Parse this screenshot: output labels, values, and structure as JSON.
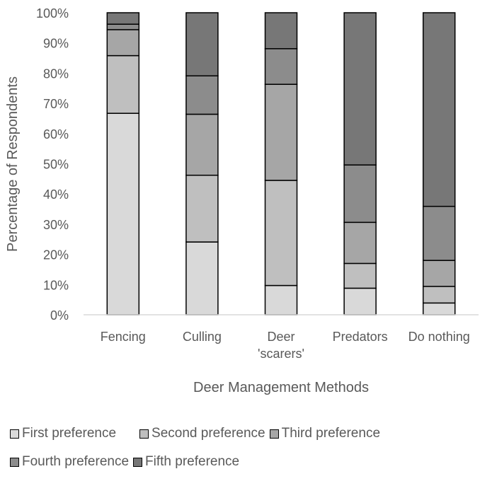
{
  "chart_data": {
    "type": "bar",
    "stacked": true,
    "percent": true,
    "title": "",
    "xlabel": "Deer Management Methods",
    "ylabel": "Percentage of Respondents",
    "ylim": [
      0,
      100
    ],
    "yticks": [
      "0%",
      "10%",
      "20%",
      "30%",
      "40%",
      "50%",
      "60%",
      "70%",
      "80%",
      "90%",
      "100%"
    ],
    "categories": [
      "Fencing",
      "Culling",
      "Deer 'scarers'",
      "Predators",
      "Do nothing"
    ],
    "category_lines": [
      [
        "Fencing"
      ],
      [
        "Culling"
      ],
      [
        "Deer",
        "'scarers'"
      ],
      [
        "Predators"
      ],
      [
        "Do nothing"
      ]
    ],
    "series": [
      {
        "name": "First preference",
        "color": "#d9d9d9",
        "values": [
          66.7,
          24.1,
          9.7,
          8.8,
          3.9
        ]
      },
      {
        "name": "Second preference",
        "color": "#bfbfbf",
        "values": [
          19.1,
          22.1,
          34.8,
          8.2,
          5.5
        ]
      },
      {
        "name": "Third preference",
        "color": "#a6a6a6",
        "values": [
          8.6,
          20.2,
          31.8,
          13.6,
          8.6
        ]
      },
      {
        "name": "Fourth preference",
        "color": "#8c8c8c",
        "values": [
          1.8,
          12.7,
          11.8,
          19.0,
          17.9
        ]
      },
      {
        "name": "Fifth preference",
        "color": "#777777",
        "values": [
          3.8,
          20.9,
          11.9,
          50.4,
          64.1
        ]
      }
    ],
    "legend_position": "bottom",
    "grid": false
  }
}
